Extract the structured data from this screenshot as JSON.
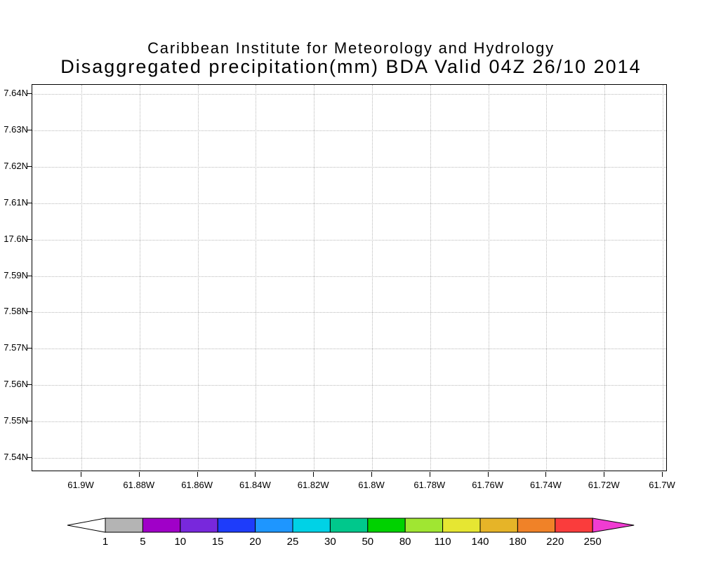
{
  "header": {
    "line1": "Caribbean Institute for Meteorology and Hydrology",
    "line2": "Disaggregated precipitation(mm) BDA Valid 04Z 26/10 2014"
  },
  "chart_data": {
    "type": "map",
    "title": "Disaggregated precipitation(mm) BDA Valid 04Z 26/10 2014",
    "subtitle": "Caribbean Institute for Meteorology and Hydrology",
    "grid": "dotted",
    "x_axis": {
      "ticks": [
        "61.9W",
        "61.88W",
        "61.86W",
        "61.84W",
        "61.82W",
        "61.8W",
        "61.78W",
        "61.76W",
        "61.74W",
        "61.72W",
        "61.7W"
      ]
    },
    "y_axis": {
      "ticks": [
        "7.64N",
        "7.63N",
        "7.62N",
        "7.61N",
        "17.6N",
        "7.59N",
        "7.58N",
        "7.57N",
        "7.56N",
        "7.55N",
        "7.54N"
      ]
    },
    "plotted_values": [],
    "colorbar": {
      "labels": [
        "1",
        "5",
        "10",
        "15",
        "20",
        "25",
        "30",
        "50",
        "80",
        "110",
        "140",
        "180",
        "220",
        "250"
      ],
      "segment_colors": [
        "#b4b4b4",
        "#a000c8",
        "#7828dc",
        "#1e3cfa",
        "#1e96ff",
        "#00d2e6",
        "#00c88c",
        "#00d200",
        "#a0e632",
        "#e6e632",
        "#e6b428",
        "#f08228",
        "#fa3c3c"
      ],
      "below_min_color": "#ffffff",
      "above_max_color": "#f03cd2",
      "outline_color": "#000000"
    }
  }
}
